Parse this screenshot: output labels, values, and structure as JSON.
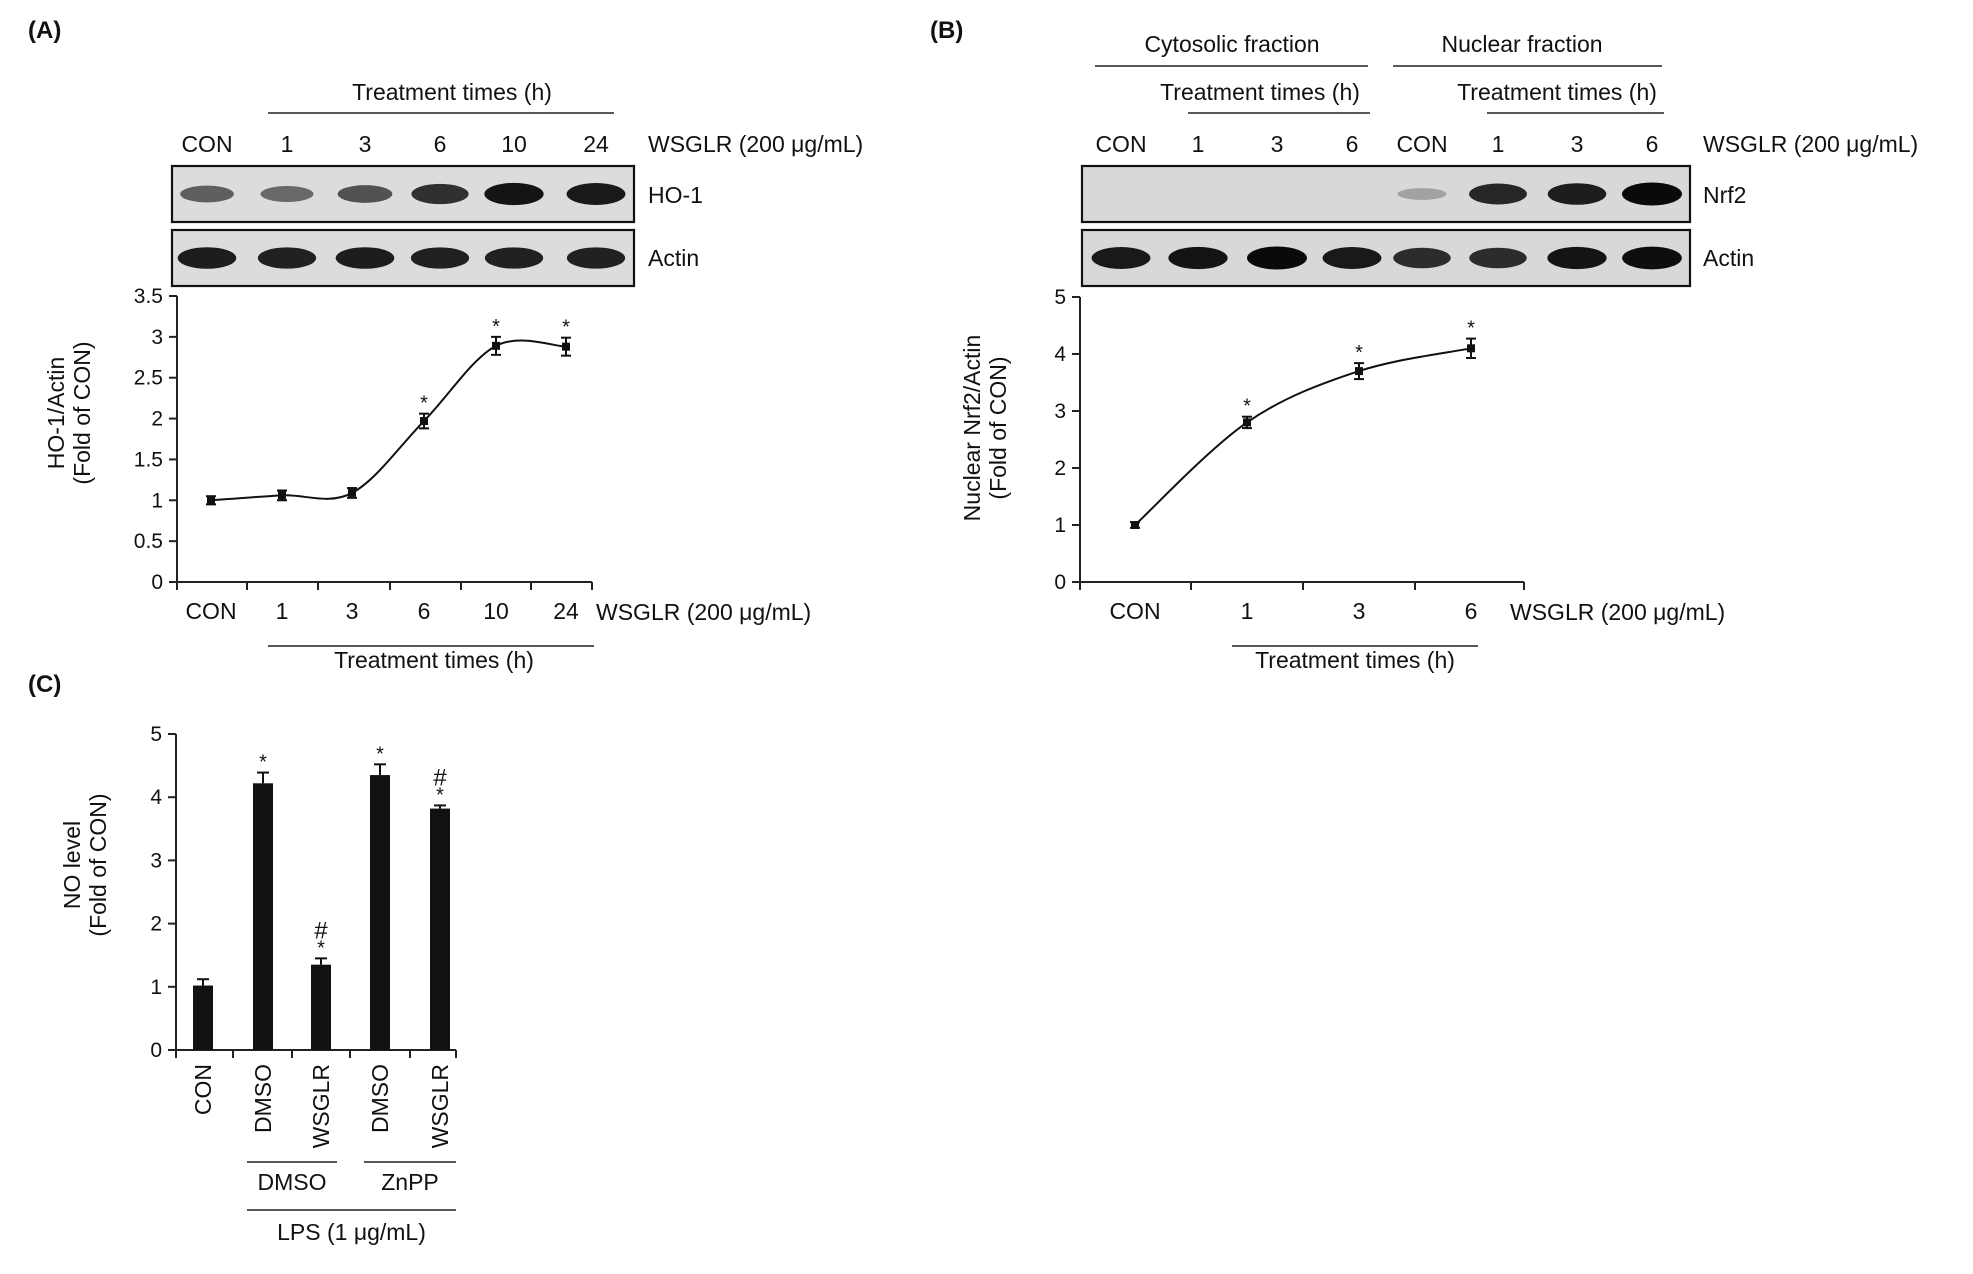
{
  "panels": {
    "A": {
      "label": "(A)",
      "blot": {
        "group_header": "Treatment times (h)",
        "lanes": [
          "CON",
          "1",
          "3",
          "6",
          "10",
          "24"
        ],
        "treatment_label": "WSGLR (200 μg/mL)",
        "rows": [
          {
            "label": "HO-1",
            "intensities": [
              0.55,
              0.5,
              0.62,
              0.8,
              0.95,
              0.92
            ]
          },
          {
            "label": "Actin",
            "intensities": [
              0.9,
              0.88,
              0.9,
              0.88,
              0.88,
              0.88
            ]
          }
        ]
      }
    },
    "B": {
      "label": "(B)",
      "blot": {
        "fraction_headers": [
          "Cytosolic fraction",
          "Nuclear fraction"
        ],
        "group_header": "Treatment times (h)",
        "lanes": [
          "CON",
          "1",
          "3",
          "6",
          "CON",
          "1",
          "3",
          "6"
        ],
        "treatment_label": "WSGLR (200 μg/mL)",
        "rows": [
          {
            "label": "Nrf2",
            "intensities": [
              0,
              0,
              0,
              0,
              0.2,
              0.85,
              0.9,
              1.0
            ]
          },
          {
            "label": "Actin",
            "intensities": [
              0.92,
              0.95,
              1.0,
              0.92,
              0.82,
              0.82,
              0.95,
              0.98
            ]
          }
        ]
      }
    },
    "C": {
      "label": "(C)"
    }
  },
  "chart_data": [
    {
      "type": "line",
      "panel": "A",
      "categories": [
        "CON",
        "1",
        "3",
        "6",
        "10",
        "24"
      ],
      "values": [
        1.0,
        1.06,
        1.09,
        1.97,
        2.89,
        2.88
      ],
      "errors": [
        0.05,
        0.06,
        0.06,
        0.09,
        0.11,
        0.11
      ],
      "significance": [
        "",
        "",
        "",
        "*",
        "*",
        "*"
      ],
      "ylabel": [
        "HO-1/Actin",
        "(Fold of CON)"
      ],
      "xlabel": "WSGLR (200 μg/mL)",
      "group_label": "Treatment times (h)",
      "yticks": [
        "0",
        "0.5",
        "1",
        "1.5",
        "2",
        "2.5",
        "3",
        "3.5"
      ],
      "ylim": [
        0,
        3.5
      ]
    },
    {
      "type": "line",
      "panel": "B",
      "categories": [
        "CON",
        "1",
        "3",
        "6"
      ],
      "values": [
        1.0,
        2.8,
        3.7,
        4.1
      ],
      "errors": [
        0.05,
        0.1,
        0.14,
        0.17
      ],
      "significance": [
        "",
        "*",
        "*",
        "*"
      ],
      "ylabel": [
        "Nuclear Nrf2/Actin",
        "(Fold of CON)"
      ],
      "xlabel": "WSGLR (200 μg/mL)",
      "group_label": "Treatment times (h)",
      "yticks": [
        "0",
        "1",
        "2",
        "3",
        "4",
        "5"
      ],
      "ylim": [
        0,
        5
      ]
    },
    {
      "type": "bar",
      "panel": "C",
      "categories": [
        "CON",
        "DMSO",
        "WSGLR",
        "DMSO",
        "WSGLR"
      ],
      "values": [
        1.02,
        4.22,
        1.35,
        4.35,
        3.82
      ],
      "errors": [
        0.1,
        0.17,
        0.1,
        0.17,
        0.05
      ],
      "significance": [
        "",
        "*",
        "*",
        "*",
        "*"
      ],
      "significance2": [
        "",
        "",
        "#",
        "",
        "#"
      ],
      "ylabel": [
        "NO level",
        "(Fold of CON)"
      ],
      "groups": [
        {
          "label": "DMSO",
          "members": [
            1,
            2
          ]
        },
        {
          "label": "ZnPP",
          "members": [
            3,
            4
          ]
        }
      ],
      "outer_group": {
        "label": "LPS (1 μg/mL)",
        "members": [
          1,
          4
        ]
      },
      "yticks": [
        "0",
        "1",
        "2",
        "3",
        "4",
        "5"
      ],
      "ylim": [
        0,
        5
      ]
    }
  ]
}
